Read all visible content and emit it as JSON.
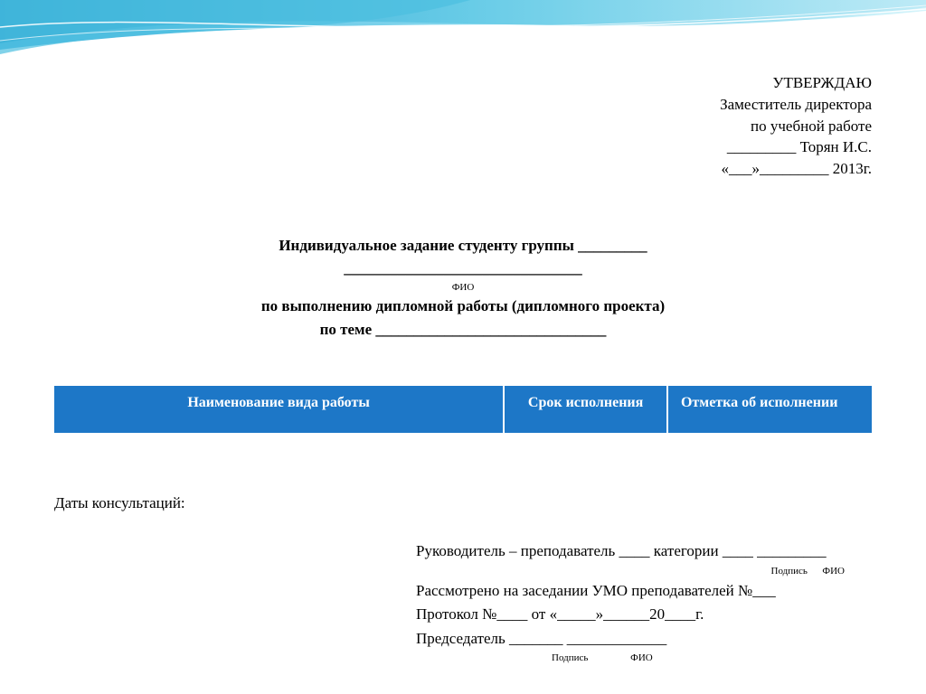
{
  "colors": {
    "table_header_bg": "#1d77c7",
    "wave_light": "#b8e8f5",
    "wave_mid": "#6fd0e8",
    "wave_dark": "#2aa8d8",
    "wave_stroke": "#ffffff"
  },
  "approval": {
    "line1": "УТВЕРЖДАЮ",
    "line2": "Заместитель директора",
    "line3": "по учебной работе",
    "line4": "_________ Торян И.С.",
    "line5": "«___»_________ 2013г."
  },
  "heading": {
    "line1": "Индивидуальное задание студенту группы _________",
    "line2": "_______________________________",
    "fio": "ФИО",
    "line3": "по выполнению дипломной работы (дипломного проекта)",
    "line4": "по теме ______________________________"
  },
  "table": {
    "columns": [
      "Наименование вида  работы",
      "Срок исполнения",
      "Отметка об исполнении"
    ],
    "col_widths_pct": [
      55,
      20,
      25
    ],
    "header_bg": "#1d77c7",
    "header_color": "#ffffff",
    "header_fontsize": 16
  },
  "consult": "Даты консультаций:",
  "signatures": {
    "line1": "Руководитель – преподаватель ____ категории ____ _________",
    "small1_left": "Подпись",
    "small1_right": "ФИО",
    "line2": "Рассмотрено на заседании УМО преподавателей №___",
    "line3": "Протокол №____ от «_____»______20____г.",
    "line4": "Председатель _______     _____________",
    "small2_left": "Подпись",
    "small2_right": "ФИО"
  }
}
